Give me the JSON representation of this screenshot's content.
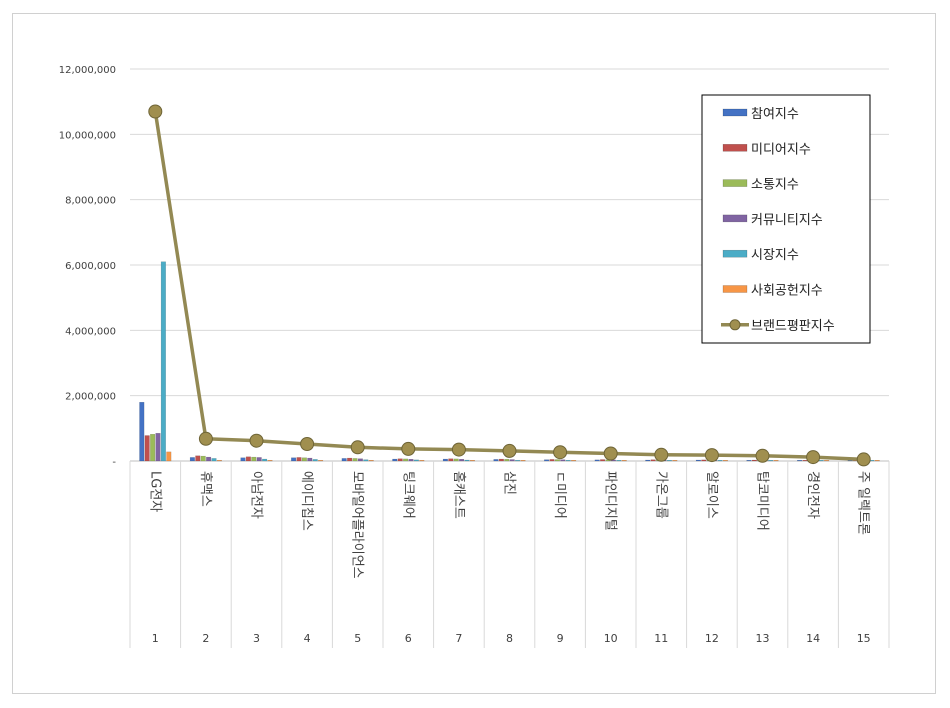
{
  "chart_data": {
    "type": "bar",
    "categories": [
      "LG전자",
      "휴맥스",
      "아남전자",
      "에이디칩스",
      "모바일어플라이언스",
      "팅크웨어",
      "홈캐스트",
      "삼진",
      "디미디어",
      "파인디지털",
      "가온그룹",
      "알로이스",
      "탑코미디어",
      "경인전자",
      "주 일렉트론"
    ],
    "category_display": [
      "LG전자",
      "휴맥스",
      "아남전자",
      "에이디칩스",
      "모바일어플라이언스",
      "팅크웨어",
      "홈캐스트",
      "삼진",
      "ㄷ미디어",
      "파인디지털",
      "가온그룹",
      "알로이스",
      "탑코미디어",
      "경인전자",
      "주 일렉트론"
    ],
    "ranks": [
      "1",
      "2",
      "3",
      "4",
      "5",
      "6",
      "7",
      "8",
      "9",
      "10",
      "11",
      "12",
      "13",
      "14",
      "15"
    ],
    "ylim": [
      0,
      12000000
    ],
    "yticks": [
      0,
      2000000,
      4000000,
      6000000,
      8000000,
      10000000,
      12000000
    ],
    "ytick_labels": [
      "-",
      "2,000,000",
      "4,000,000",
      "6,000,000",
      "8,000,000",
      "10,000,000",
      "12,000,000"
    ],
    "grid": true,
    "legend_position": "top-right",
    "series": [
      {
        "name": "참여지수",
        "kind": "bar",
        "color": "#4472c4",
        "values": [
          1800000,
          110000,
          100000,
          100000,
          80000,
          60000,
          60000,
          50000,
          40000,
          35000,
          30000,
          30000,
          25000,
          25000,
          15000
        ]
      },
      {
        "name": "미디어지수",
        "kind": "bar",
        "color": "#c0504d",
        "values": [
          780000,
          160000,
          130000,
          110000,
          90000,
          70000,
          70000,
          60000,
          50000,
          45000,
          40000,
          35000,
          30000,
          25000,
          20000
        ]
      },
      {
        "name": "소통지수",
        "kind": "bar",
        "color": "#9bbb59",
        "values": [
          820000,
          150000,
          120000,
          100000,
          80000,
          65000,
          65000,
          55000,
          45000,
          40000,
          35000,
          30000,
          25000,
          20000,
          15000
        ]
      },
      {
        "name": "커뮤니티지수",
        "kind": "bar",
        "color": "#8064a2",
        "values": [
          850000,
          120000,
          110000,
          90000,
          70000,
          55000,
          55000,
          45000,
          40000,
          35000,
          30000,
          25000,
          20000,
          18000,
          12000
        ]
      },
      {
        "name": "시장지수",
        "kind": "bar",
        "color": "#4bacc6",
        "values": [
          6100000,
          80000,
          60000,
          50000,
          40000,
          35000,
          30000,
          25000,
          25000,
          20000,
          20000,
          15000,
          15000,
          12000,
          10000
        ]
      },
      {
        "name": "사회공헌지수",
        "kind": "bar",
        "color": "#f79646",
        "values": [
          280000,
          20000,
          15000,
          12000,
          10000,
          8000,
          8000,
          6000,
          6000,
          5000,
          5000,
          4000,
          4000,
          3000,
          2000
        ]
      },
      {
        "name": "브랜드평판지수",
        "kind": "line",
        "color": "#938953",
        "marker_fill": "#a08f4f",
        "values": [
          10700000,
          680000,
          620000,
          520000,
          420000,
          370000,
          350000,
          310000,
          270000,
          230000,
          190000,
          180000,
          160000,
          120000,
          50000
        ]
      }
    ]
  }
}
